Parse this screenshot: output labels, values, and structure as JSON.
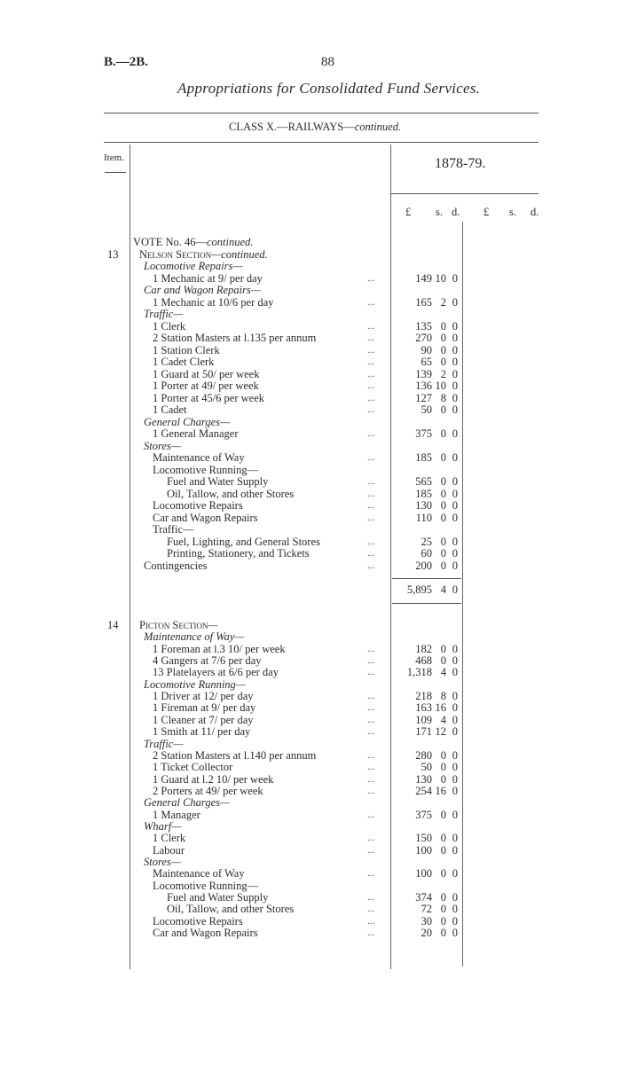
{
  "header": {
    "ref": "B.—2B.",
    "page": "88",
    "title": "Appropriations for Consolidated Fund Services.",
    "class_title": "CLASS X.—RAILWAYS—",
    "class_suffix": "continued."
  },
  "table_header": {
    "item": "Item.",
    "year": "1878-79.",
    "col1": [
      "£",
      "s.",
      "d."
    ],
    "col2": [
      "£",
      "s.",
      "d."
    ]
  },
  "sections": [
    {
      "item": "13",
      "rows": [
        {
          "level": 0,
          "text": "VOTE No. 46—",
          "italic_suffix": "continued."
        },
        {
          "level": 1,
          "smallcaps": "Nelson Section",
          "italic_suffix": "—continued.",
          "item": true
        },
        {
          "level": 2,
          "italic": "Locomotive Repairs—"
        },
        {
          "level": 3,
          "text": "1 Mechanic at 9/ per day",
          "amount": [
            "149",
            "10",
            "0"
          ]
        },
        {
          "level": 2,
          "italic": "Car and Wagon Repairs—"
        },
        {
          "level": 3,
          "text": "1 Mechanic at 10/6 per day",
          "amount": [
            "165",
            "2",
            "0"
          ]
        },
        {
          "level": 2,
          "italic": "Traffic—"
        },
        {
          "level": 3,
          "text": "1 Clerk",
          "amount": [
            "135",
            "0",
            "0"
          ]
        },
        {
          "level": 3,
          "text": "2 Station Masters at l.135 per annum",
          "amount": [
            "270",
            "0",
            "0"
          ]
        },
        {
          "level": 3,
          "text": "1 Station Clerk",
          "amount": [
            "90",
            "0",
            "0"
          ]
        },
        {
          "level": 3,
          "text": "1 Cadet Clerk",
          "amount": [
            "65",
            "0",
            "0"
          ]
        },
        {
          "level": 3,
          "text": "1 Guard at 50/ per week",
          "amount": [
            "139",
            "2",
            "0"
          ]
        },
        {
          "level": 3,
          "text": "1 Porter at 49/ per week",
          "amount": [
            "136",
            "10",
            "0"
          ]
        },
        {
          "level": 3,
          "text": "1 Porter at 45/6 per week",
          "amount": [
            "127",
            "8",
            "0"
          ]
        },
        {
          "level": 3,
          "text": "1 Cadet",
          "amount": [
            "50",
            "0",
            "0"
          ]
        },
        {
          "level": 2,
          "italic": "General Charges—"
        },
        {
          "level": 3,
          "text": "1 General Manager",
          "amount": [
            "375",
            "0",
            "0"
          ]
        },
        {
          "level": 2,
          "italic": "Stores—"
        },
        {
          "level": 3,
          "text": "Maintenance of Way",
          "amount": [
            "185",
            "0",
            "0"
          ]
        },
        {
          "level": 3,
          "text": "Locomotive Running—"
        },
        {
          "level": 4,
          "text": "Fuel and Water Supply",
          "amount": [
            "565",
            "0",
            "0"
          ]
        },
        {
          "level": 4,
          "text": "Oil, Tallow, and other Stores",
          "amount": [
            "185",
            "0",
            "0"
          ]
        },
        {
          "level": 3,
          "text": "Locomotive Repairs",
          "amount": [
            "130",
            "0",
            "0"
          ]
        },
        {
          "level": 3,
          "text": "Car and Wagon Repairs",
          "amount": [
            "110",
            "0",
            "0"
          ]
        },
        {
          "level": 3,
          "text": "Traffic—"
        },
        {
          "level": 4,
          "text": "Fuel, Lighting, and General Stores",
          "amount": [
            "25",
            "0",
            "0"
          ]
        },
        {
          "level": 4,
          "text": "Printing, Stationery, and Tickets",
          "amount": [
            "60",
            "0",
            "0"
          ]
        },
        {
          "level": 2,
          "text": "Contingencies",
          "amount": [
            "200",
            "0",
            "0"
          ]
        }
      ],
      "total": [
        "5,895",
        "4",
        "0"
      ]
    },
    {
      "item": "14",
      "rows": [
        {
          "level": 1,
          "smallcaps": "Picton Section",
          "italic_suffix": "—",
          "item": true
        },
        {
          "level": 2,
          "italic": "Maintenance of Way—"
        },
        {
          "level": 3,
          "text": "1 Foreman at l.3 10/ per week",
          "amount": [
            "182",
            "0",
            "0"
          ]
        },
        {
          "level": 3,
          "text": "4 Gangers at 7/6 per day",
          "amount": [
            "468",
            "0",
            "0"
          ]
        },
        {
          "level": 3,
          "text": "13 Platelayers at 6/6 per day",
          "amount": [
            "1,318",
            "4",
            "0"
          ]
        },
        {
          "level": 2,
          "italic": "Locomotive Running—"
        },
        {
          "level": 3,
          "text": "1 Driver at 12/ per day",
          "amount": [
            "218",
            "8",
            "0"
          ]
        },
        {
          "level": 3,
          "text": "1 Fireman at 9/ per day",
          "amount": [
            "163",
            "16",
            "0"
          ]
        },
        {
          "level": 3,
          "text": "1 Cleaner at 7/ per day",
          "amount": [
            "109",
            "4",
            "0"
          ]
        },
        {
          "level": 3,
          "text": "1 Smith at 11/ per day",
          "amount": [
            "171",
            "12",
            "0"
          ]
        },
        {
          "level": 2,
          "italic": "Traffic—"
        },
        {
          "level": 3,
          "text": "2 Station Masters at l.140 per annum",
          "amount": [
            "280",
            "0",
            "0"
          ]
        },
        {
          "level": 3,
          "text": "1 Ticket Collector",
          "amount": [
            "50",
            "0",
            "0"
          ]
        },
        {
          "level": 3,
          "text": "1 Guard at l.2 10/ per week",
          "amount": [
            "130",
            "0",
            "0"
          ]
        },
        {
          "level": 3,
          "text": "2 Porters at 49/ per week",
          "amount": [
            "254",
            "16",
            "0"
          ]
        },
        {
          "level": 2,
          "italic": "General Charges—"
        },
        {
          "level": 3,
          "text": "1 Manager",
          "amount": [
            "375",
            "0",
            "0"
          ]
        },
        {
          "level": 2,
          "italic": "Wharf—"
        },
        {
          "level": 3,
          "text": "1 Clerk",
          "amount": [
            "150",
            "0",
            "0"
          ]
        },
        {
          "level": 3,
          "text": "Labour",
          "amount": [
            "100",
            "0",
            "0"
          ]
        },
        {
          "level": 2,
          "italic": "Stores—"
        },
        {
          "level": 3,
          "text": "Maintenance of Way",
          "amount": [
            "100",
            "0",
            "0"
          ]
        },
        {
          "level": 3,
          "text": "Locomotive Running—"
        },
        {
          "level": 4,
          "text": "Fuel and Water Supply",
          "amount": [
            "374",
            "0",
            "0"
          ]
        },
        {
          "level": 4,
          "text": "Oil, Tallow, and other Stores",
          "amount": [
            "72",
            "0",
            "0"
          ]
        },
        {
          "level": 3,
          "text": "Locomotive Repairs",
          "amount": [
            "30",
            "0",
            "0"
          ]
        },
        {
          "level": 3,
          "text": "Car and Wagon Repairs",
          "amount": [
            "20",
            "0",
            "0"
          ]
        }
      ]
    }
  ]
}
